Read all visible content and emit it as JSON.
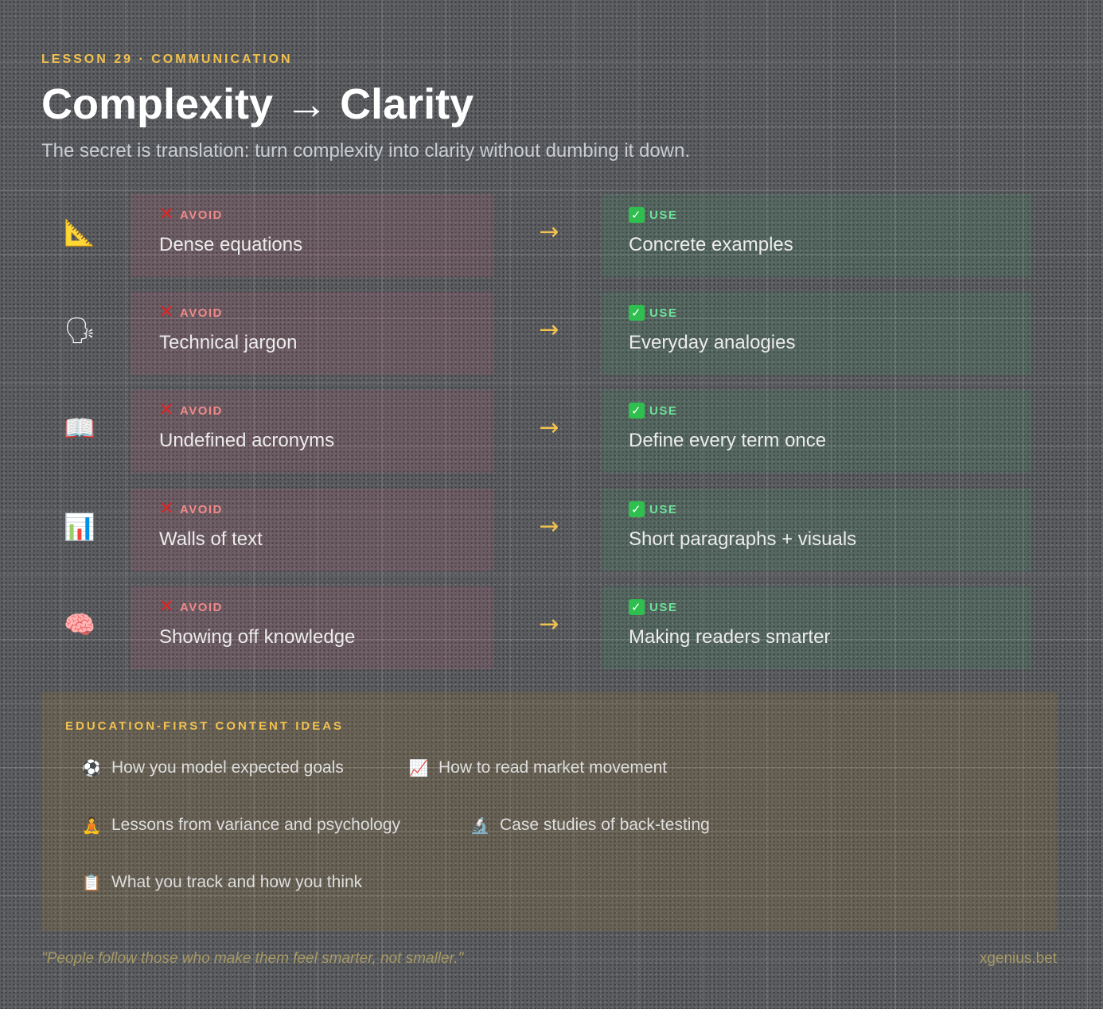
{
  "header": {
    "eyebrow": "LESSON 29 · COMMUNICATION",
    "title": "Complexity → Clarity",
    "subtitle": "The secret is translation: turn complexity into clarity without dumbing it down."
  },
  "labels": {
    "avoid": "AVOID",
    "use": "USE",
    "arrow": "→"
  },
  "rows": [
    {
      "icon": "📐",
      "icon_name": "triangular-ruler-icon",
      "avoid": "Dense equations",
      "use": "Concrete examples"
    },
    {
      "icon": "🗣",
      "icon_name": "speaking-head-icon",
      "avoid": "Technical jargon",
      "use": "Everyday analogies"
    },
    {
      "icon": "📖",
      "icon_name": "open-book-icon",
      "avoid": "Undefined acronyms",
      "use": "Define every term once"
    },
    {
      "icon": "📊",
      "icon_name": "bar-chart-icon",
      "avoid": "Walls of text",
      "use": "Short paragraphs + visuals"
    },
    {
      "icon": "🧠",
      "icon_name": "brain-icon",
      "avoid": "Showing off knowledge",
      "use": "Making readers smarter"
    }
  ],
  "ideas": {
    "heading": "EDUCATION-FIRST CONTENT IDEAS",
    "items": [
      {
        "icon": "⚽",
        "icon_name": "soccer-ball-icon",
        "text": "How you model expected goals"
      },
      {
        "icon": "📈",
        "icon_name": "chart-increasing-icon",
        "text": "How to read market movement"
      },
      {
        "icon": "🧘",
        "icon_name": "meditation-icon",
        "text": "Lessons from variance and psychology"
      },
      {
        "icon": "🔬",
        "icon_name": "microscope-icon",
        "text": "Case studies of back-testing"
      },
      {
        "icon": "📋",
        "icon_name": "clipboard-icon",
        "text": "What you track and how you think"
      }
    ]
  },
  "footer": {
    "quote": "\"People follow those who make them feel smarter, not smaller.\"",
    "brand": "xgenius.bet"
  },
  "colors": {
    "accent": "#f2c14e",
    "avoid": "#e02424",
    "use": "#2fbf4f"
  }
}
